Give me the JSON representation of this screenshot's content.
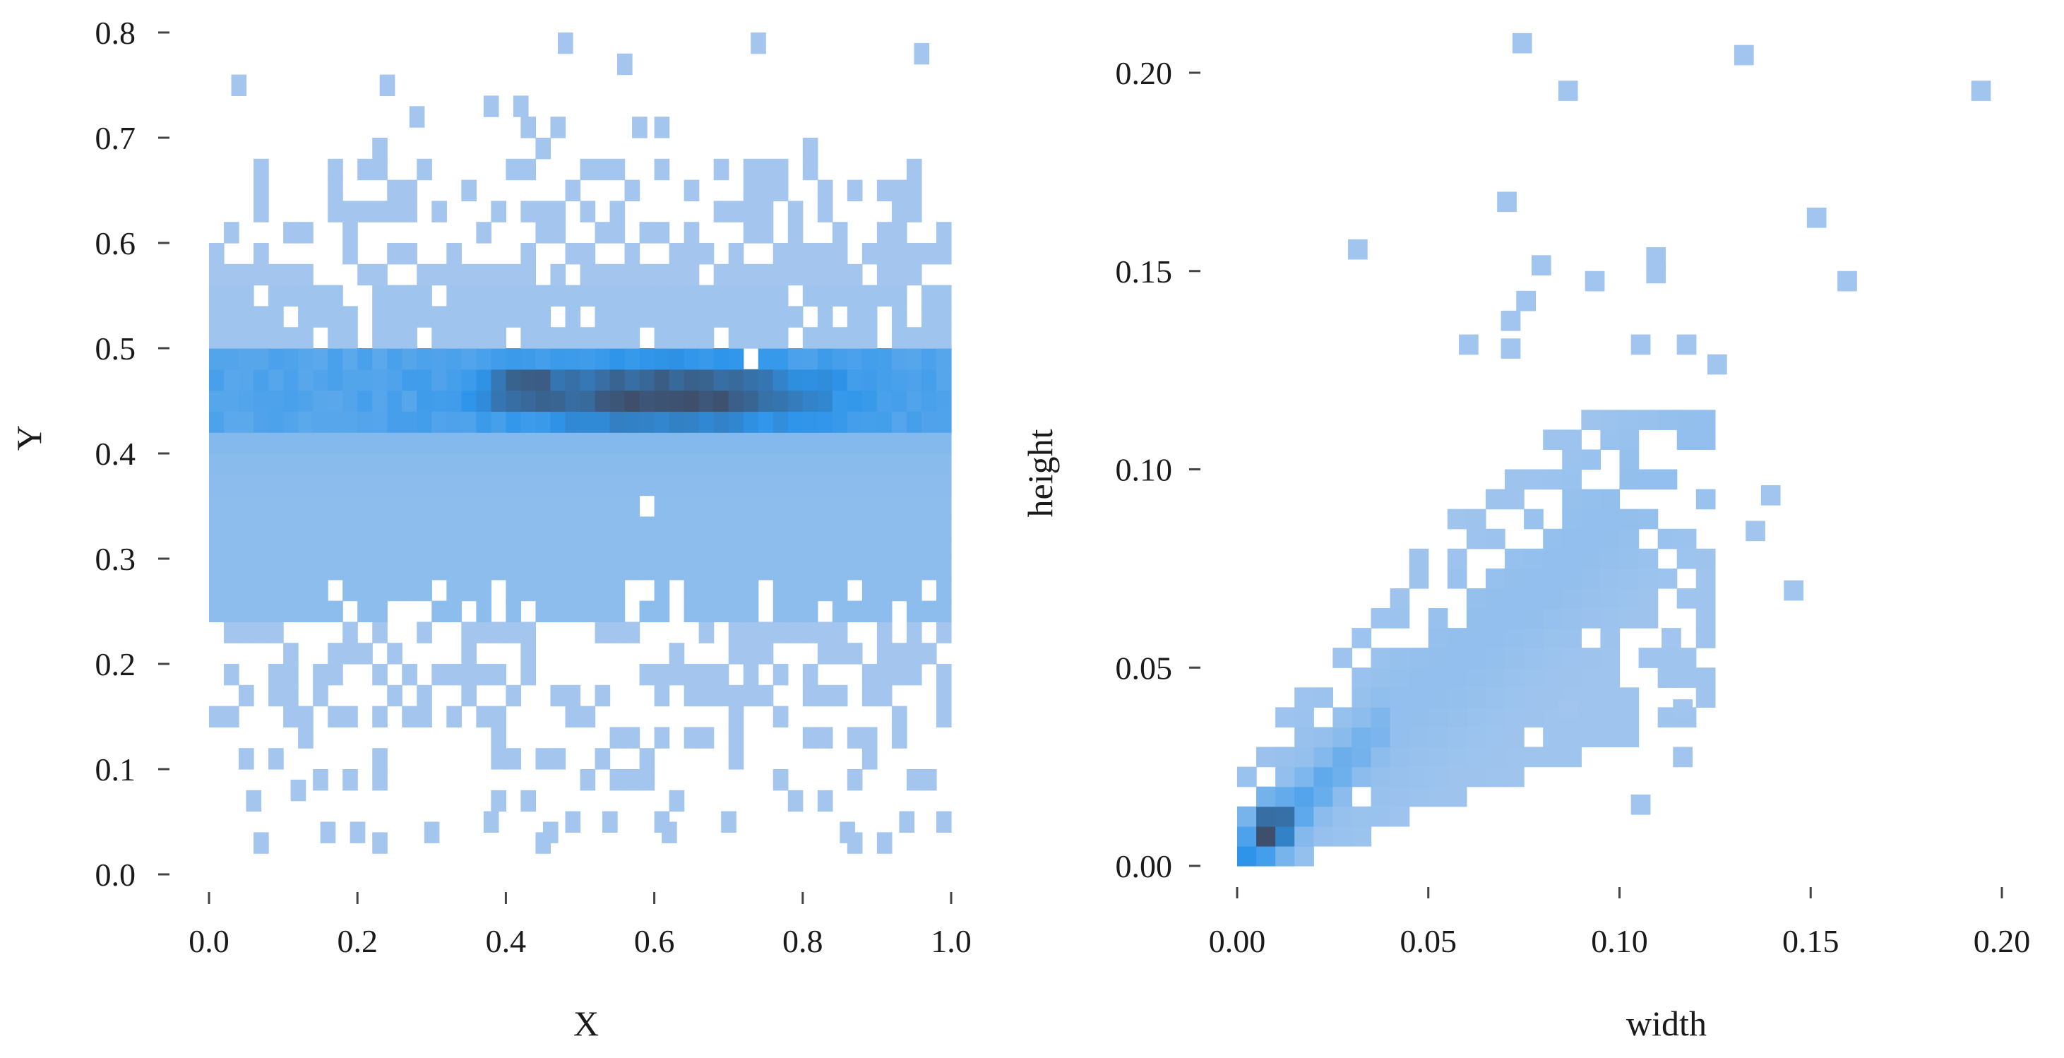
{
  "colors": {
    "light": "#a8c8ee",
    "mid": "#2e95ea",
    "dark": "#3e4f6b",
    "tick": "#444444",
    "text": "#1a1a1a"
  },
  "chart_data": [
    {
      "type": "heatmap",
      "title": "",
      "xlabel": "X",
      "ylabel": "Y",
      "xlim": [
        0,
        1.0
      ],
      "ylim": [
        0,
        0.8
      ],
      "xticks": [
        "0.0",
        "0.2",
        "0.4",
        "0.6",
        "0.8",
        "1.0"
      ],
      "yticks": [
        "0.0",
        "0.1",
        "0.2",
        "0.3",
        "0.4",
        "0.5",
        "0.6",
        "0.7",
        "0.8"
      ],
      "bin_size": [
        0.02,
        0.02
      ],
      "density_model": {
        "band_low": [
          0.24,
          0.5
        ],
        "core_band": [
          0.42,
          0.5
        ],
        "dense_region": {
          "x": [
            0.5,
            0.8
          ],
          "y": [
            0.42,
            0.5
          ]
        },
        "darkest_center": {
          "x": 0.6,
          "y": 0.455
        }
      },
      "isolated_bins": [
        [
          0.03,
          0.74
        ],
        [
          0.23,
          0.74
        ],
        [
          0.27,
          0.71
        ],
        [
          0.41,
          0.72
        ],
        [
          0.47,
          0.78
        ],
        [
          0.55,
          0.76
        ],
        [
          0.73,
          0.78
        ],
        [
          0.95,
          0.77
        ],
        [
          0.37,
          0.72
        ],
        [
          0.57,
          0.7
        ],
        [
          0.05,
          0.06
        ],
        [
          0.15,
          0.03
        ],
        [
          0.19,
          0.03
        ],
        [
          0.29,
          0.03
        ],
        [
          0.37,
          0.04
        ],
        [
          0.45,
          0.03
        ],
        [
          0.53,
          0.04
        ],
        [
          0.61,
          0.03
        ],
        [
          0.69,
          0.04
        ],
        [
          0.85,
          0.03
        ],
        [
          0.93,
          0.04
        ],
        [
          0.11,
          0.07
        ]
      ],
      "grid": false,
      "legend": "none"
    },
    {
      "type": "heatmap",
      "title": "",
      "xlabel": "width",
      "ylabel": "height",
      "xlim": [
        0,
        0.2
      ],
      "ylim": [
        0,
        0.2
      ],
      "xticks": [
        "0.00",
        "0.05",
        "0.10",
        "0.15",
        "0.20"
      ],
      "yticks": [
        "0.00",
        "0.05",
        "0.10",
        "0.15",
        "0.20"
      ],
      "bin_size": [
        0.005,
        0.005
      ],
      "density_model": {
        "trend": "height ≈ 0.9 × width near origin, spreading wider as width grows",
        "darkest_region": {
          "x": [
            0.005,
            0.012
          ],
          "y": [
            0.005,
            0.014
          ]
        },
        "mid_ridge": {
          "x": [
            0.012,
            0.035
          ],
          "y": [
            0.012,
            0.035
          ]
        }
      },
      "isolated_bins": [
        [
          0.072,
          0.205
        ],
        [
          0.13,
          0.202
        ],
        [
          0.084,
          0.193
        ],
        [
          0.192,
          0.193
        ],
        [
          0.029,
          0.153
        ],
        [
          0.068,
          0.165
        ],
        [
          0.149,
          0.161
        ],
        [
          0.077,
          0.149
        ],
        [
          0.107,
          0.151
        ],
        [
          0.107,
          0.147
        ],
        [
          0.091,
          0.145
        ],
        [
          0.157,
          0.145
        ],
        [
          0.073,
          0.14
        ],
        [
          0.069,
          0.135
        ],
        [
          0.069,
          0.128
        ],
        [
          0.058,
          0.129
        ],
        [
          0.103,
          0.129
        ],
        [
          0.115,
          0.129
        ],
        [
          0.123,
          0.124
        ],
        [
          0.137,
          0.091
        ],
        [
          0.133,
          0.082
        ],
        [
          0.143,
          0.067
        ],
        [
          0.103,
          0.013
        ],
        [
          0.114,
          0.037
        ],
        [
          0.114,
          0.025
        ],
        [
          0.084,
          0.037
        ],
        [
          0.111,
          0.055
        ]
      ],
      "grid": false,
      "legend": "none"
    }
  ]
}
